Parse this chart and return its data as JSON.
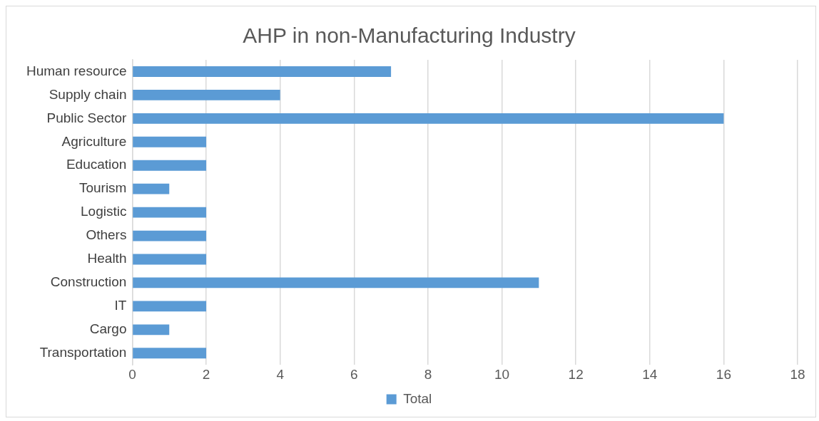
{
  "chart_data": {
    "type": "bar",
    "title": "AHP in non-Manufacturing Industry",
    "orientation": "horizontal",
    "categories": [
      "Human resource",
      "Supply chain",
      "Public Sector",
      "Agriculture",
      "Education",
      "Tourism",
      "Logistic",
      "Others",
      "Health",
      "Construction",
      "IT",
      "Cargo",
      "Transportation"
    ],
    "series": [
      {
        "name": "Total",
        "color": "#5b9bd5",
        "values": [
          7,
          4,
          16,
          2,
          2,
          1,
          2,
          2,
          2,
          11,
          2,
          1,
          2
        ]
      }
    ],
    "xlim": [
      0,
      18
    ],
    "xticks": [
      0,
      2,
      4,
      6,
      8,
      10,
      12,
      14,
      16,
      18
    ],
    "grid": "x",
    "legend": "bottom"
  }
}
